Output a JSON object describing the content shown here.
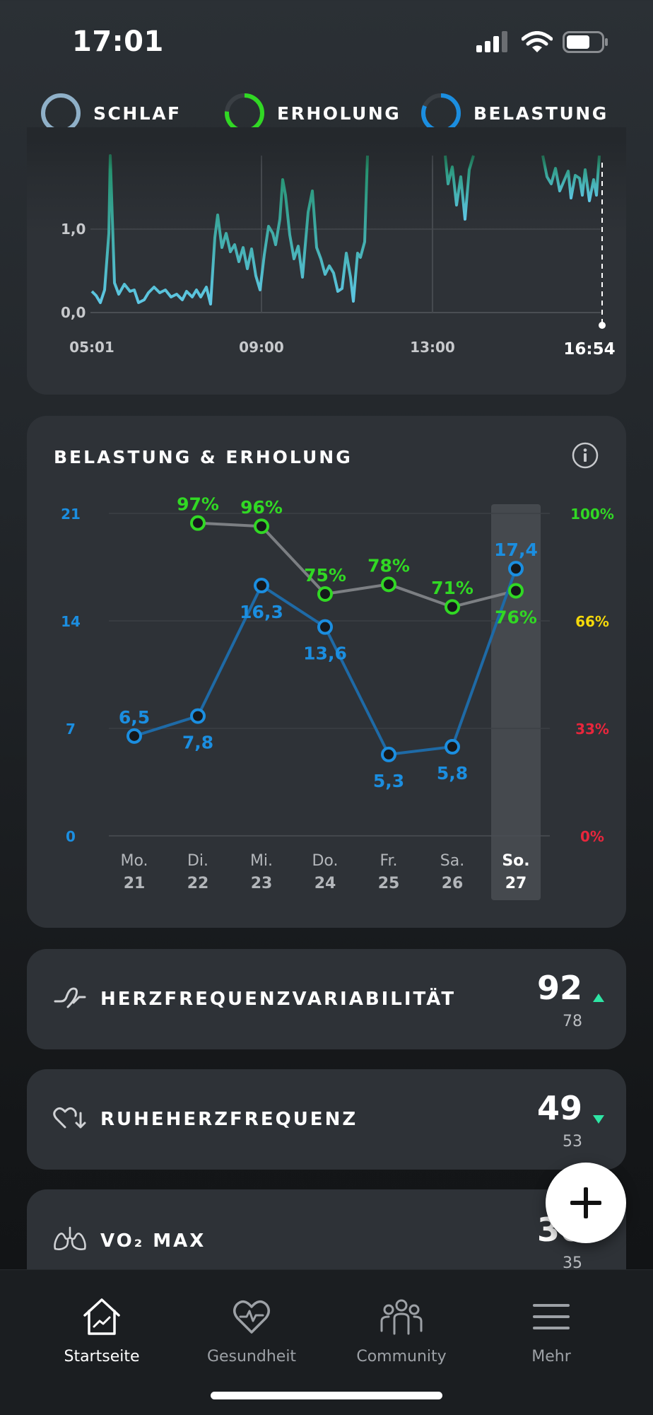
{
  "status_bar": {
    "time": "17:01"
  },
  "rings": [
    {
      "label": "SCHLAF",
      "color": "#8fb0c8"
    },
    {
      "label": "ERHOLUNG",
      "color": "#31d824"
    },
    {
      "label": "BELASTUNG",
      "color": "#1b8ee0"
    }
  ],
  "hr_chart": {
    "y_ticks": [
      "1,0",
      "0,0"
    ],
    "x_ticks": [
      "05:01",
      "09:00",
      "13:00"
    ],
    "now_label": "16:54"
  },
  "strain_recovery": {
    "title": "BELASTUNG & ERHOLUNG",
    "info_icon": "info-icon",
    "colors": {
      "strain": "#1b8ee0",
      "recovery": "#31d824",
      "mid": "#f5d90a",
      "low": "#e8263c"
    }
  },
  "chart_data": {
    "type": "line",
    "title": "BELASTUNG & ERHOLUNG",
    "categories": [
      "Mo. 21",
      "Di. 22",
      "Mi. 23",
      "Do. 24",
      "Fr. 25",
      "Sa. 26",
      "So. 27"
    ],
    "day_names": [
      "Mo.",
      "Di.",
      "Mi.",
      "Do.",
      "Fr.",
      "Sa.",
      "So."
    ],
    "day_numbers": [
      "21",
      "22",
      "23",
      "24",
      "25",
      "26",
      "27"
    ],
    "selected_index": 6,
    "series": [
      {
        "axis": "left",
        "values": [
          6.5,
          7.8,
          16.3,
          13.6,
          5.3,
          5.8,
          17.4
        ],
        "labels": [
          "6,5",
          "7,8",
          "16,3",
          "13,6",
          "5,3",
          "5,8",
          "17,4"
        ],
        "color": "#1b8ee0"
      },
      {
        "axis": "right",
        "values": [
          null,
          97,
          96,
          75,
          78,
          71,
          76
        ],
        "labels": [
          "",
          "97%",
          "96%",
          "75%",
          "78%",
          "71%",
          "76%"
        ],
        "color": "#31d824"
      }
    ],
    "y_left": {
      "range": [
        0,
        21
      ],
      "ticks": [
        "21",
        "14",
        "7",
        "0"
      ]
    },
    "y_right": {
      "range": [
        0,
        100
      ],
      "ticks": [
        "100%",
        "66%",
        "33%",
        "0%"
      ],
      "tick_colors": [
        "#31d824",
        "#f5d90a",
        "#e8263c",
        "#e8263c"
      ]
    },
    "grid": true
  },
  "metrics": [
    {
      "title": "HERZFREQUENZVARIABILITÄT",
      "value": "92",
      "previous": "78",
      "trend": "up",
      "icon": "hrv-icon"
    },
    {
      "title": "RUHEHERZFREQUENZ",
      "value": "49",
      "previous": "53",
      "trend": "down",
      "icon": "heart-down-icon"
    },
    {
      "title": "VO₂ MAX",
      "value": "36",
      "previous": "35",
      "icon": "lungs-icon"
    }
  ],
  "fab": {
    "icon": "plus-icon"
  },
  "nav": [
    {
      "label": "Startseite",
      "icon": "home-icon",
      "active": true
    },
    {
      "label": "Gesundheit",
      "icon": "heart-pulse-icon",
      "active": false
    },
    {
      "label": "Community",
      "icon": "people-icon",
      "active": false
    },
    {
      "label": "Mehr",
      "icon": "menu-icon",
      "active": false
    }
  ]
}
